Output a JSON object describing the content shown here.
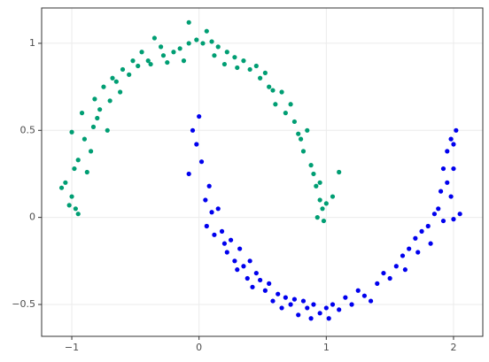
{
  "chart_data": {
    "type": "scatter",
    "xlim": [
      -1.237,
      2.23
    ],
    "ylim": [
      -0.683,
      1.203
    ],
    "xticks": [
      {
        "value": -1,
        "label": "−1"
      },
      0,
      1,
      2
    ],
    "yticks": [
      {
        "value": -0.5,
        "label": "−0.5"
      },
      0,
      0.5,
      1
    ],
    "grid": true,
    "series": [
      {
        "color": "#009e73",
        "x": [
          -1.08,
          -1.05,
          -1.02,
          -1.0,
          -0.98,
          -0.97,
          -0.95,
          -1.0,
          -0.95,
          -0.92,
          -0.9,
          -0.88,
          -0.85,
          -0.83,
          -0.8,
          -0.82,
          -0.78,
          -0.75,
          -0.72,
          -0.7,
          -0.68,
          -0.65,
          -0.62,
          -0.6,
          -0.55,
          -0.52,
          -0.48,
          -0.45,
          -0.4,
          -0.38,
          -0.35,
          -0.3,
          -0.28,
          -0.25,
          -0.2,
          -0.15,
          -0.12,
          -0.08,
          -0.08,
          -0.02,
          0.03,
          0.06,
          0.1,
          0.12,
          0.15,
          0.2,
          0.22,
          0.28,
          0.3,
          0.35,
          0.4,
          0.45,
          0.48,
          0.52,
          0.55,
          0.58,
          0.6,
          0.65,
          0.68,
          0.72,
          0.75,
          0.78,
          0.8,
          0.82,
          0.85,
          0.88,
          0.9,
          0.92,
          0.95,
          0.97,
          1.0,
          0.93,
          0.98,
          1.1,
          1.05,
          0.95
        ],
        "values": [
          0.17,
          0.2,
          0.07,
          0.12,
          0.28,
          0.05,
          0.02,
          0.49,
          0.33,
          0.6,
          0.45,
          0.26,
          0.38,
          0.52,
          0.57,
          0.68,
          0.62,
          0.75,
          0.5,
          0.67,
          0.8,
          0.78,
          0.72,
          0.85,
          0.82,
          0.9,
          0.87,
          0.95,
          0.9,
          0.88,
          1.03,
          0.98,
          0.93,
          0.89,
          0.95,
          0.97,
          0.9,
          1.0,
          1.12,
          1.02,
          1.0,
          1.07,
          1.01,
          0.93,
          0.98,
          0.88,
          0.95,
          0.92,
          0.86,
          0.9,
          0.85,
          0.87,
          0.8,
          0.83,
          0.75,
          0.73,
          0.65,
          0.72,
          0.6,
          0.65,
          0.55,
          0.48,
          0.45,
          0.38,
          0.5,
          0.3,
          0.25,
          0.18,
          0.1,
          0.05,
          0.08,
          0.0,
          -0.02,
          0.26,
          0.12,
          0.2
        ]
      },
      {
        "color": "#0000ee",
        "x": [
          -0.08,
          -0.05,
          -0.02,
          0.0,
          0.02,
          0.05,
          0.08,
          0.1,
          0.06,
          0.12,
          0.15,
          0.18,
          0.2,
          0.22,
          0.25,
          0.28,
          0.3,
          0.32,
          0.35,
          0.38,
          0.4,
          0.42,
          0.45,
          0.48,
          0.52,
          0.55,
          0.58,
          0.62,
          0.65,
          0.68,
          0.72,
          0.75,
          0.78,
          0.82,
          0.85,
          0.88,
          0.9,
          0.95,
          1.0,
          1.02,
          1.05,
          1.1,
          1.15,
          1.2,
          1.25,
          1.3,
          1.35,
          1.4,
          1.45,
          1.5,
          1.55,
          1.6,
          1.62,
          1.65,
          1.7,
          1.72,
          1.75,
          1.8,
          1.82,
          1.85,
          1.88,
          1.9,
          1.92,
          1.95,
          1.98,
          2.0,
          1.95,
          2.0,
          2.02,
          1.98,
          1.92,
          2.05,
          2.0
        ],
        "values": [
          0.25,
          0.5,
          0.42,
          0.58,
          0.32,
          0.1,
          0.18,
          0.03,
          -0.05,
          -0.1,
          0.05,
          -0.08,
          -0.15,
          -0.2,
          -0.13,
          -0.25,
          -0.3,
          -0.18,
          -0.28,
          -0.35,
          -0.25,
          -0.4,
          -0.32,
          -0.36,
          -0.42,
          -0.38,
          -0.48,
          -0.44,
          -0.52,
          -0.46,
          -0.5,
          -0.47,
          -0.56,
          -0.48,
          -0.52,
          -0.58,
          -0.5,
          -0.55,
          -0.52,
          -0.58,
          -0.5,
          -0.53,
          -0.46,
          -0.5,
          -0.42,
          -0.45,
          -0.48,
          -0.38,
          -0.32,
          -0.35,
          -0.28,
          -0.22,
          -0.3,
          -0.18,
          -0.12,
          -0.2,
          -0.08,
          -0.05,
          -0.15,
          0.02,
          0.05,
          0.15,
          -0.02,
          0.2,
          0.12,
          0.28,
          0.38,
          0.42,
          0.5,
          0.45,
          0.28,
          0.02,
          -0.01
        ]
      }
    ]
  }
}
